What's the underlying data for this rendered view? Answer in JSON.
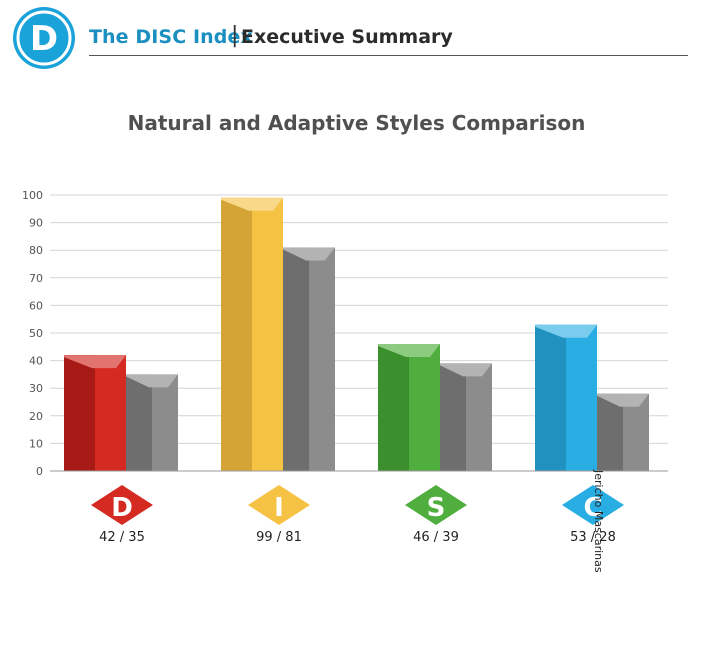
{
  "header": {
    "logo_letter": "D",
    "logo_color": "#1aa3d9",
    "title": "The DISC Index",
    "separator": "|",
    "subtitle": "Executive Summary"
  },
  "chart_data": {
    "type": "bar",
    "title": "Natural and Adaptive Styles Comparison",
    "categories": [
      "D",
      "I",
      "S",
      "C"
    ],
    "series": [
      {
        "values": [
          42,
          99,
          46,
          53
        ]
      },
      {
        "values": [
          35,
          81,
          39,
          28
        ]
      }
    ],
    "category_colors": {
      "D": {
        "front": "#d42a22",
        "side": "#a81a16",
        "top": "#e27470"
      },
      "I": {
        "front": "#f5c244",
        "side": "#d4a536",
        "top": "#f8d98a"
      },
      "S": {
        "front": "#4fae3d",
        "side": "#3b8f2c",
        "top": "#8dcb80"
      },
      "C": {
        "front": "#29aee3",
        "side": "#2192c0",
        "top": "#79ccee"
      }
    },
    "adaptive_color": {
      "front": "#8c8c8c",
      "side": "#6e6e6e",
      "top": "#b3b3b3"
    },
    "score_labels": [
      "42 / 35",
      "99 / 81",
      "46 / 39",
      "53 / 28"
    ],
    "ylim": [
      0,
      100
    ],
    "yticks": [
      0,
      10,
      20,
      30,
      40,
      50,
      60,
      70,
      80,
      90,
      100
    ],
    "grid": true,
    "legend": "none"
  },
  "author": "Jericho Mascarinas"
}
